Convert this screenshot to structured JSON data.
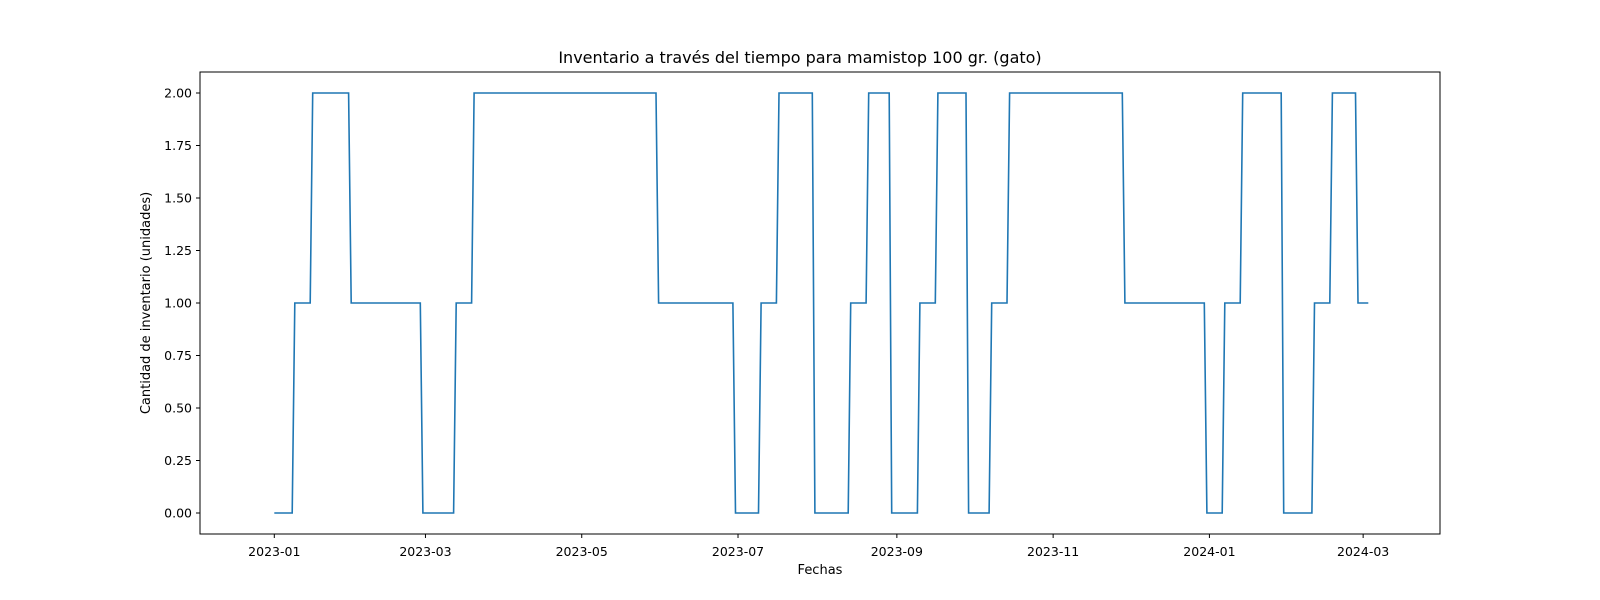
{
  "chart_data": {
    "type": "line",
    "title": "Inventario a través del tiempo para mamistop 100 gr. (gato)",
    "xlabel": "Fechas",
    "ylabel": "Cantidad de inventario (unidades)",
    "x_type": "date",
    "xlim": [
      "2022-12-03",
      "2024-03-31"
    ],
    "ylim": [
      -0.1,
      2.1
    ],
    "x_ticks": [
      "2023-01",
      "2023-03",
      "2023-05",
      "2023-07",
      "2023-09",
      "2023-11",
      "2024-01",
      "2024-03"
    ],
    "y_ticks": [
      "0.00",
      "0.25",
      "0.50",
      "0.75",
      "1.00",
      "1.25",
      "1.50",
      "1.75",
      "2.00"
    ],
    "grid": false,
    "line_style": "steps",
    "line_color": "#1f77b4",
    "series": [
      {
        "x": [
          "2023-01-01",
          "2023-01-08",
          "2023-01-09",
          "2023-01-15",
          "2023-01-16",
          "2023-01-30",
          "2023-01-31",
          "2023-02-27",
          "2023-02-28",
          "2023-03-12",
          "2023-03-13",
          "2023-03-19",
          "2023-03-20",
          "2023-05-30",
          "2023-05-31",
          "2023-06-29",
          "2023-06-30",
          "2023-07-09",
          "2023-07-10",
          "2023-07-16",
          "2023-07-17",
          "2023-07-30",
          "2023-07-31",
          "2023-08-13",
          "2023-08-14",
          "2023-08-20",
          "2023-08-21",
          "2023-08-29",
          "2023-08-30",
          "2023-09-09",
          "2023-09-10",
          "2023-09-16",
          "2023-09-17",
          "2023-09-28",
          "2023-09-29",
          "2023-10-07",
          "2023-10-08",
          "2023-10-14",
          "2023-10-15",
          "2023-11-28",
          "2023-11-29",
          "2023-12-30",
          "2023-12-31",
          "2024-01-06",
          "2024-01-07",
          "2024-01-13",
          "2024-01-14",
          "2024-01-29",
          "2024-01-30",
          "2024-02-10",
          "2024-02-11",
          "2024-02-17",
          "2024-02-18",
          "2024-02-27",
          "2024-02-28",
          "2024-03-03"
        ],
        "values": [
          0,
          0,
          1,
          1,
          2,
          2,
          1,
          1,
          0,
          0,
          1,
          1,
          2,
          2,
          1,
          1,
          0,
          0,
          1,
          1,
          2,
          2,
          0,
          0,
          1,
          1,
          2,
          2,
          0,
          0,
          1,
          1,
          2,
          2,
          0,
          0,
          1,
          1,
          2,
          2,
          1,
          1,
          0,
          0,
          1,
          1,
          2,
          2,
          0,
          0,
          1,
          1,
          2,
          2,
          1,
          1
        ]
      }
    ]
  }
}
